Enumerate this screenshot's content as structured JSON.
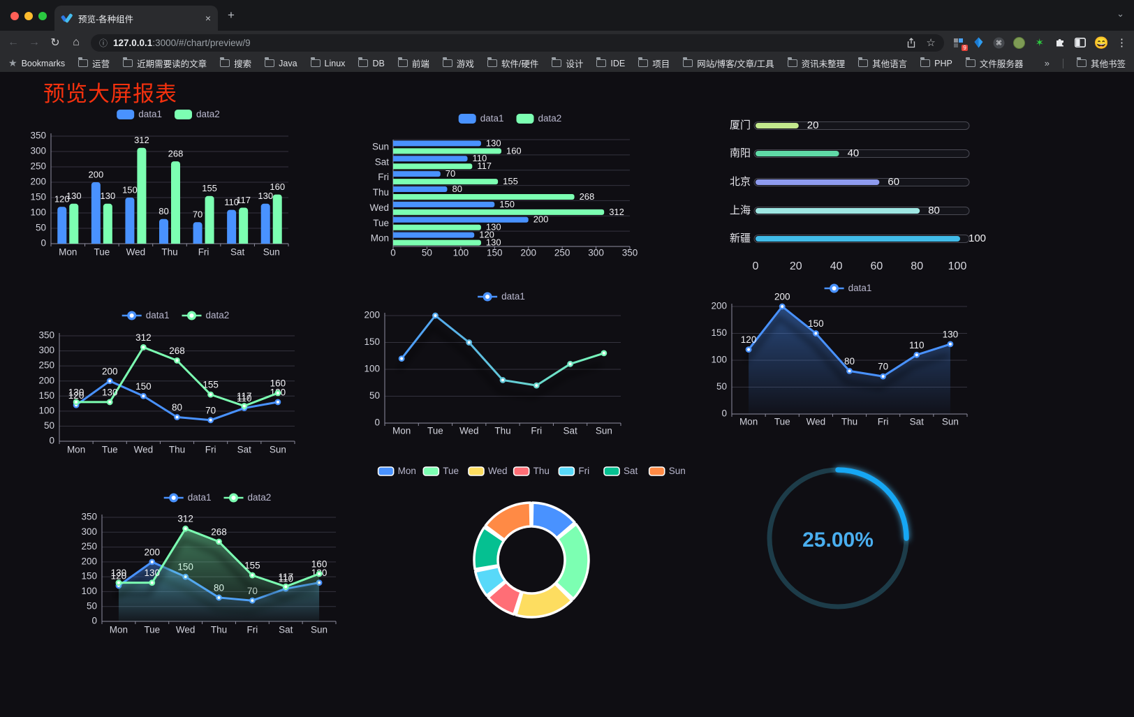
{
  "browser": {
    "tab": {
      "title": "预览-各种组件",
      "close_icon": "×",
      "new_tab_icon": "+",
      "chevron_icon": "⌄"
    },
    "toolbar": {
      "back_icon": "←",
      "forward_icon": "→",
      "refresh_icon": "↻",
      "home_icon": "⌂",
      "url_host": "127.0.0.1",
      "url_path": ":3000/#/chart/preview/9",
      "extension_badge": "9",
      "avatar_emoji": "😄",
      "menu_icon": "⋮",
      "star_icon": "☆",
      "info_icon": "ⓘ"
    },
    "bookmarks_bar": {
      "star_icon": "★",
      "label": "Bookmarks",
      "items": [
        "运营",
        "近期需要读的文章",
        "搜索",
        "Java",
        "Linux",
        "DB",
        "前端",
        "游戏",
        "软件/硬件",
        "设计",
        "IDE",
        "项目",
        "网站/博客/文章/工具",
        "资讯未整理",
        "其他语言",
        "PHP",
        "文件服务器"
      ],
      "overflow_icon": "»",
      "other_bookmarks_label": "其他书签"
    }
  },
  "page": {
    "title": "预览大屏报表"
  },
  "chart_data": [
    {
      "id": "c1",
      "type": "bar",
      "categories": [
        "Mon",
        "Tue",
        "Wed",
        "Thu",
        "Fri",
        "Sat",
        "Sun"
      ],
      "series": [
        {
          "name": "data1",
          "color": "#4992ff",
          "values": [
            120,
            200,
            150,
            80,
            70,
            110,
            130
          ]
        },
        {
          "name": "data2",
          "color": "#7cffb2",
          "values": [
            130,
            130,
            312,
            268,
            155,
            117,
            160
          ]
        }
      ],
      "ylim": [
        0,
        350
      ],
      "ytick_step": 50,
      "grid": true,
      "legend_position": "top",
      "point_labels": true
    },
    {
      "id": "c2",
      "type": "bar-horizontal",
      "categories": [
        "Mon",
        "Tue",
        "Wed",
        "Thu",
        "Fri",
        "Sat",
        "Sun"
      ],
      "series": [
        {
          "name": "data1",
          "color": "#4992ff",
          "values": [
            120,
            200,
            150,
            80,
            70,
            110,
            130
          ]
        },
        {
          "name": "data2",
          "color": "#7cffb2",
          "values": [
            130,
            130,
            312,
            268,
            155,
            117,
            160
          ]
        }
      ],
      "xlim": [
        0,
        350
      ],
      "xtick_step": 50,
      "grid": true,
      "legend_position": "top",
      "point_labels": true
    },
    {
      "id": "c3",
      "type": "progress-bars",
      "categories": [
        "厦门",
        "南阳",
        "北京",
        "上海",
        "新疆"
      ],
      "values": [
        20,
        40,
        60,
        80,
        100
      ],
      "colors": [
        "#c3e88d",
        "#5fd9a6",
        "#8e9bef",
        "#9fe7e3",
        "#41bbe8"
      ],
      "xlim": [
        0,
        100
      ],
      "xticks": [
        0,
        20,
        40,
        60,
        80,
        100
      ]
    },
    {
      "id": "c4",
      "type": "line",
      "categories": [
        "Mon",
        "Tue",
        "Wed",
        "Thu",
        "Fri",
        "Sat",
        "Sun"
      ],
      "series": [
        {
          "name": "data1",
          "color": "#4992ff",
          "values": [
            120,
            200,
            150,
            80,
            70,
            110,
            130
          ]
        },
        {
          "name": "data2",
          "color": "#7cffb2",
          "values": [
            130,
            130,
            312,
            268,
            155,
            117,
            160
          ]
        }
      ],
      "ylim": [
        0,
        350
      ],
      "ytick_step": 50,
      "point_labels": true,
      "legend_position": "top"
    },
    {
      "id": "c5",
      "type": "line",
      "categories": [
        "Mon",
        "Tue",
        "Wed",
        "Thu",
        "Fri",
        "Sat",
        "Sun"
      ],
      "series": [
        {
          "name": "data1",
          "gradient": [
            "#4992ff",
            "#7cffb2"
          ],
          "color": "#4992ff",
          "values": [
            120,
            200,
            150,
            80,
            70,
            110,
            130
          ]
        }
      ],
      "ylim": [
        0,
        200
      ],
      "ytick_step": 50,
      "point_labels": false,
      "legend_position": "top",
      "shadow": true
    },
    {
      "id": "c6",
      "type": "area",
      "categories": [
        "Mon",
        "Tue",
        "Wed",
        "Thu",
        "Fri",
        "Sat",
        "Sun"
      ],
      "series": [
        {
          "name": "data1",
          "color": "#4992ff",
          "values": [
            120,
            200,
            150,
            80,
            70,
            110,
            130
          ]
        }
      ],
      "ylim": [
        0,
        200
      ],
      "ytick_step": 50,
      "point_labels": true,
      "legend_position": "top",
      "shadow": true
    },
    {
      "id": "c7",
      "type": "area",
      "categories": [
        "Mon",
        "Tue",
        "Wed",
        "Thu",
        "Fri",
        "Sat",
        "Sun"
      ],
      "series": [
        {
          "name": "data1",
          "color": "#4992ff",
          "values": [
            120,
            200,
            150,
            80,
            70,
            110,
            130
          ]
        },
        {
          "name": "data2",
          "color": "#7cffb2",
          "values": [
            130,
            130,
            312,
            268,
            155,
            117,
            160
          ]
        }
      ],
      "ylim": [
        0,
        350
      ],
      "ytick_step": 50,
      "point_labels": true,
      "legend_position": "top",
      "shadow": true
    },
    {
      "id": "c8",
      "type": "pie",
      "items": [
        {
          "label": "Mon",
          "value": 120,
          "color": "#4992ff"
        },
        {
          "label": "Tue",
          "value": 200,
          "color": "#7cffb2"
        },
        {
          "label": "Wed",
          "value": 150,
          "color": "#fddd60"
        },
        {
          "label": "Thu",
          "value": 80,
          "color": "#ff6e76"
        },
        {
          "label": "Fri",
          "value": 70,
          "color": "#58d9f9"
        },
        {
          "label": "Sat",
          "value": 110,
          "color": "#05c091"
        },
        {
          "label": "Sun",
          "value": 130,
          "color": "#ff8a45"
        }
      ],
      "legend_position": "top",
      "donut": true
    },
    {
      "id": "c9",
      "type": "gauge",
      "value_text": "25.00%",
      "percent": 25,
      "arc_color": "#18a7f4",
      "track_color": "#1d3c49",
      "text_color": "#4aaff0"
    }
  ]
}
